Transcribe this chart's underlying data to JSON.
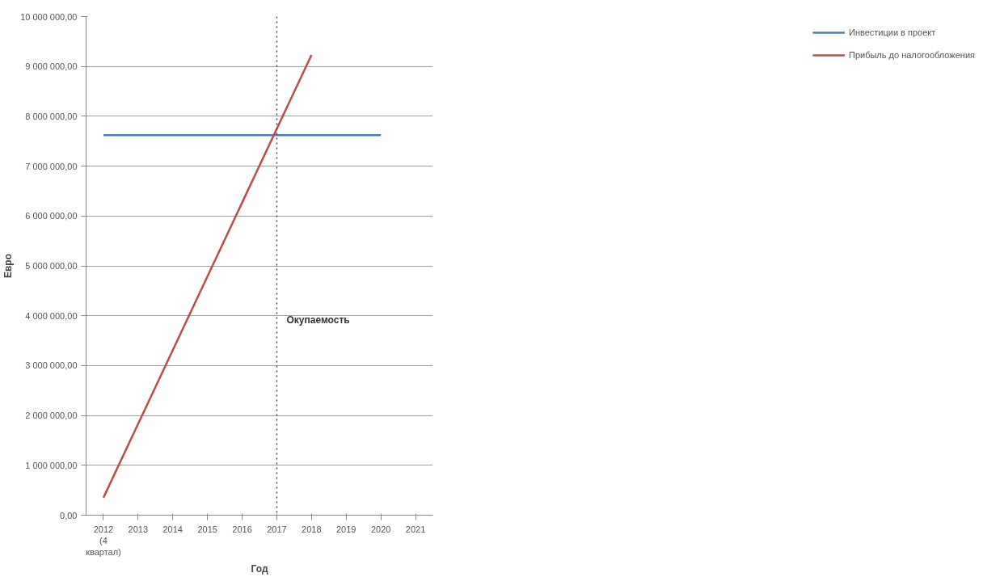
{
  "chart_data": {
    "type": "line",
    "xlabel": "Год",
    "ylabel": "Евро",
    "categories": [
      "2012 (4 квартал)",
      "2013",
      "2014",
      "2015",
      "2016",
      "2017",
      "2018",
      "2019",
      "2020",
      "2021"
    ],
    "series": [
      {
        "name": "Инвестиции в проект",
        "color": "#4a7ebb",
        "values": [
          7620000,
          7620000,
          7620000,
          7620000,
          7620000,
          7620000,
          7620000,
          7620000,
          7620000,
          null
        ]
      },
      {
        "name": "Прибыль до налогообложения",
        "color": "#be4b48",
        "values": [
          350000,
          1830000,
          3310000,
          4790000,
          6270000,
          7750000,
          9230000,
          null,
          null,
          null
        ]
      }
    ],
    "ylim": [
      0,
      10000000
    ],
    "yticks": [
      {
        "value": 0,
        "label": "0,00"
      },
      {
        "value": 1000000,
        "label": "1 000 000,00"
      },
      {
        "value": 2000000,
        "label": "2 000 000,00"
      },
      {
        "value": 3000000,
        "label": "3 000 000,00"
      },
      {
        "value": 4000000,
        "label": "4 000 000,00"
      },
      {
        "value": 5000000,
        "label": "5 000 000,00"
      },
      {
        "value": 6000000,
        "label": "6 000 000,00"
      },
      {
        "value": 7000000,
        "label": "7 000 000,00"
      },
      {
        "value": 8000000,
        "label": "8 000 000,00"
      },
      {
        "value": 9000000,
        "label": "9 000 000,00"
      },
      {
        "value": 10000000,
        "label": "10 000 000,00"
      }
    ],
    "ref_lines": [
      {
        "axis": "x",
        "value": "2017",
        "color": "#404040",
        "line_style": "dotted"
      }
    ],
    "annotations": [
      {
        "text": "Окупаемость",
        "x": "2017",
        "y": 3800000
      }
    ],
    "grid": "y",
    "legend": "right",
    "marker": "none",
    "line_style": "solid"
  }
}
